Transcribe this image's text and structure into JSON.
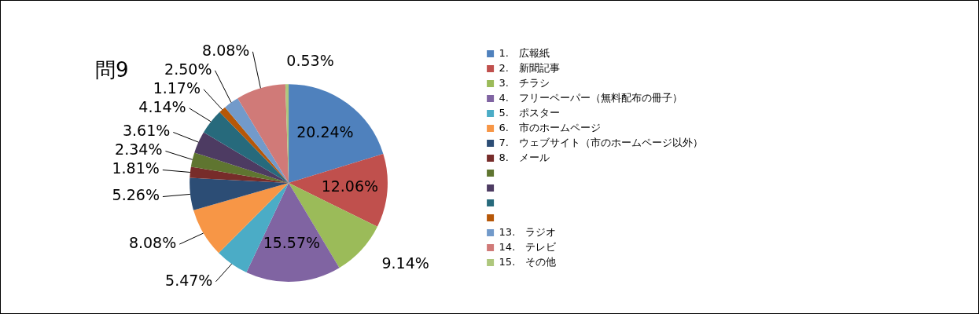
{
  "chart_data": {
    "type": "pie",
    "title": "問9",
    "categories": [
      "1.　広報紙",
      "2.　新聞記事",
      "3.　チラシ",
      "4.　フリーペーパー（無料配布の冊子）",
      "5.　ポスター",
      "6.　市のホームページ",
      "7.　ウェブサイト（市のホームページ以外）",
      "8.　メール",
      null,
      null,
      null,
      null,
      "13.　ラジオ",
      "14.　テレビ",
      "15.　その他"
    ],
    "values": [
      20.24,
      12.06,
      9.14,
      15.57,
      5.47,
      8.08,
      5.26,
      1.81,
      2.34,
      3.61,
      4.14,
      1.17,
      2.5,
      8.08,
      0.53
    ],
    "value_labels": [
      "20.24%",
      "12.06%",
      "9.14%",
      "15.57%",
      "5.47%",
      "8.08%",
      "5.26%",
      "1.81%",
      "2.34%",
      "3.61%",
      "4.14%",
      "1.17%",
      "2.50%",
      "8.08%",
      "0.53%"
    ],
    "colors": [
      "#4f81bd",
      "#c0504d",
      "#9bbb59",
      "#8064a2",
      "#4bacc6",
      "#f79646",
      "#2c4d75",
      "#772c2a",
      "#5f7530",
      "#4d3b62",
      "#276a7c",
      "#b65708",
      "#729aca",
      "#d07a78",
      "#aec77d"
    ],
    "legend": "right"
  }
}
